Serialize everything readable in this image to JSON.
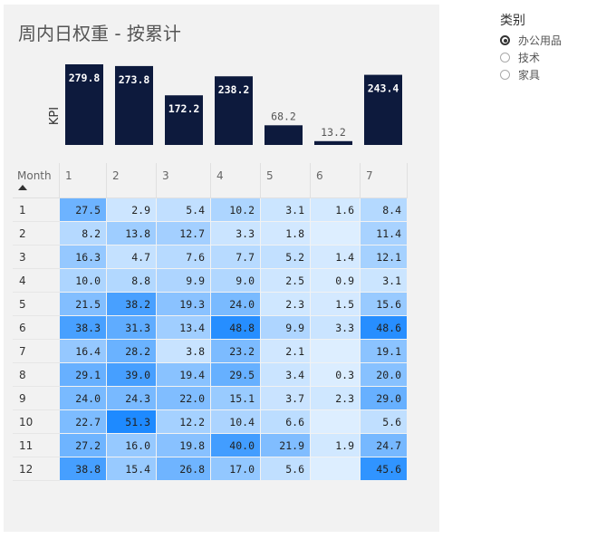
{
  "title": "周内日权重 - 按累计",
  "legend": {
    "title": "类别",
    "items": [
      {
        "label": "办公用品",
        "selected": true
      },
      {
        "label": "技术",
        "selected": false
      },
      {
        "label": "家具",
        "selected": false
      }
    ]
  },
  "colors": {
    "bar": "#0d1a3d",
    "heat_min": "#ddeeff",
    "heat_max": "#1e8aff"
  },
  "chart_data": [
    {
      "type": "bar",
      "categories": [
        "1",
        "2",
        "3",
        "4",
        "5",
        "6",
        "7"
      ],
      "values": [
        279.8,
        273.8,
        172.2,
        238.2,
        68.2,
        13.2,
        243.4
      ],
      "labels": [
        "279.8",
        "273.8",
        "172.2",
        "238.2",
        "68.2",
        "13.2",
        "243.4"
      ],
      "ylabel": "KPI",
      "ylim": [
        0,
        300
      ]
    },
    {
      "type": "heatmap",
      "row_header": "Month",
      "columns": [
        "1",
        "2",
        "3",
        "4",
        "5",
        "6",
        "7"
      ],
      "rows": [
        "1",
        "2",
        "3",
        "4",
        "5",
        "6",
        "7",
        "8",
        "9",
        "10",
        "11",
        "12"
      ],
      "values": [
        [
          "27.5",
          "2.9",
          "5.4",
          "10.2",
          "3.1",
          "1.6",
          "8.4"
        ],
        [
          "8.2",
          "13.8",
          "12.7",
          "3.3",
          "1.8",
          "",
          "11.4"
        ],
        [
          "16.3",
          "4.7",
          "7.6",
          "7.7",
          "5.2",
          "1.4",
          "12.1"
        ],
        [
          "10.0",
          "8.8",
          "9.9",
          "9.0",
          "2.5",
          "0.9",
          "3.1"
        ],
        [
          "21.5",
          "38.2",
          "19.3",
          "24.0",
          "2.3",
          "1.5",
          "15.6"
        ],
        [
          "38.3",
          "31.3",
          "13.4",
          "48.8",
          "9.9",
          "3.3",
          "48.6"
        ],
        [
          "16.4",
          "28.2",
          "3.8",
          "23.2",
          "2.1",
          "",
          "19.1"
        ],
        [
          "29.1",
          "39.0",
          "19.4",
          "29.5",
          "3.4",
          "0.3",
          "20.0"
        ],
        [
          "24.0",
          "24.3",
          "22.0",
          "15.1",
          "3.7",
          "2.3",
          "29.0"
        ],
        [
          "22.7",
          "51.3",
          "12.2",
          "10.4",
          "6.6",
          "",
          "5.6"
        ],
        [
          "27.2",
          "16.0",
          "19.8",
          "40.0",
          "21.9",
          "1.9",
          "24.7"
        ],
        [
          "38.8",
          "15.4",
          "26.8",
          "17.0",
          "5.6",
          "",
          "45.6"
        ]
      ],
      "sort": "ascending"
    }
  ]
}
